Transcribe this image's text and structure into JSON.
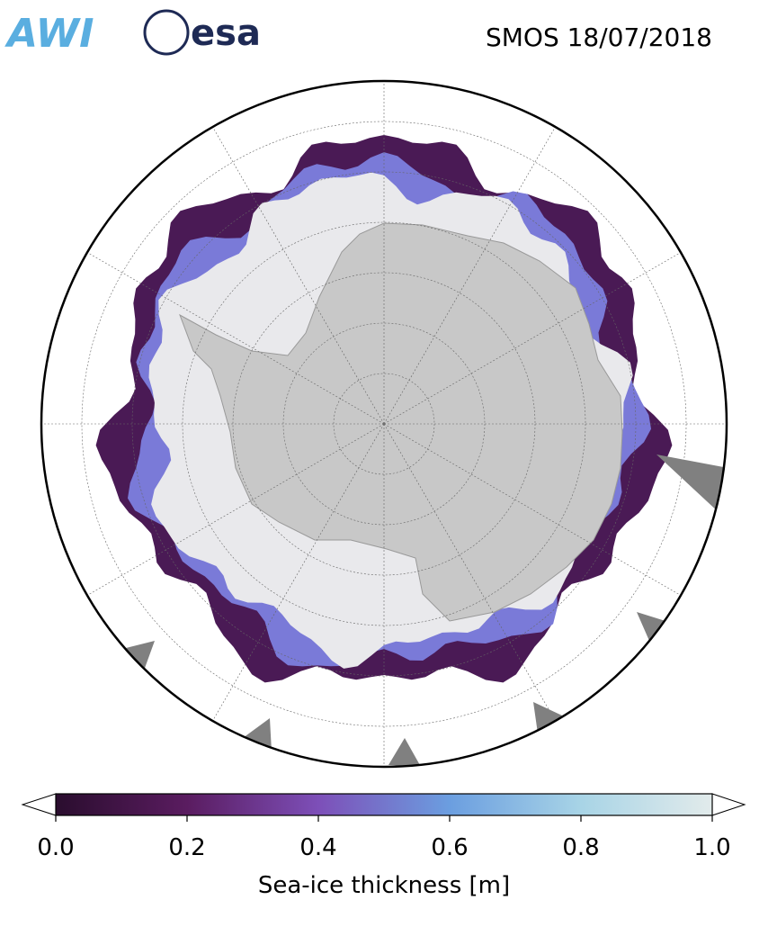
{
  "header": {
    "logos": [
      "AWI",
      "esa"
    ],
    "title": "SMOS 18/07/2018"
  },
  "colorbar": {
    "label": "Sea-ice thickness [m]",
    "lim": [
      0,
      1
    ],
    "ticks": [
      {
        "value": 0,
        "label": "0.0"
      },
      {
        "value": 0.2,
        "label": "0.2"
      },
      {
        "value": 0.4,
        "label": "0.4"
      },
      {
        "value": 0.6,
        "label": "0.6"
      },
      {
        "value": 0.8,
        "label": "0.8"
      },
      {
        "value": 1,
        "label": "1.0"
      }
    ],
    "colors": [
      "#2a0d2e",
      "#5a1c60",
      "#7d4fb8",
      "#6b9ee0",
      "#a8d4e6",
      "#e2ebeb"
    ]
  }
}
